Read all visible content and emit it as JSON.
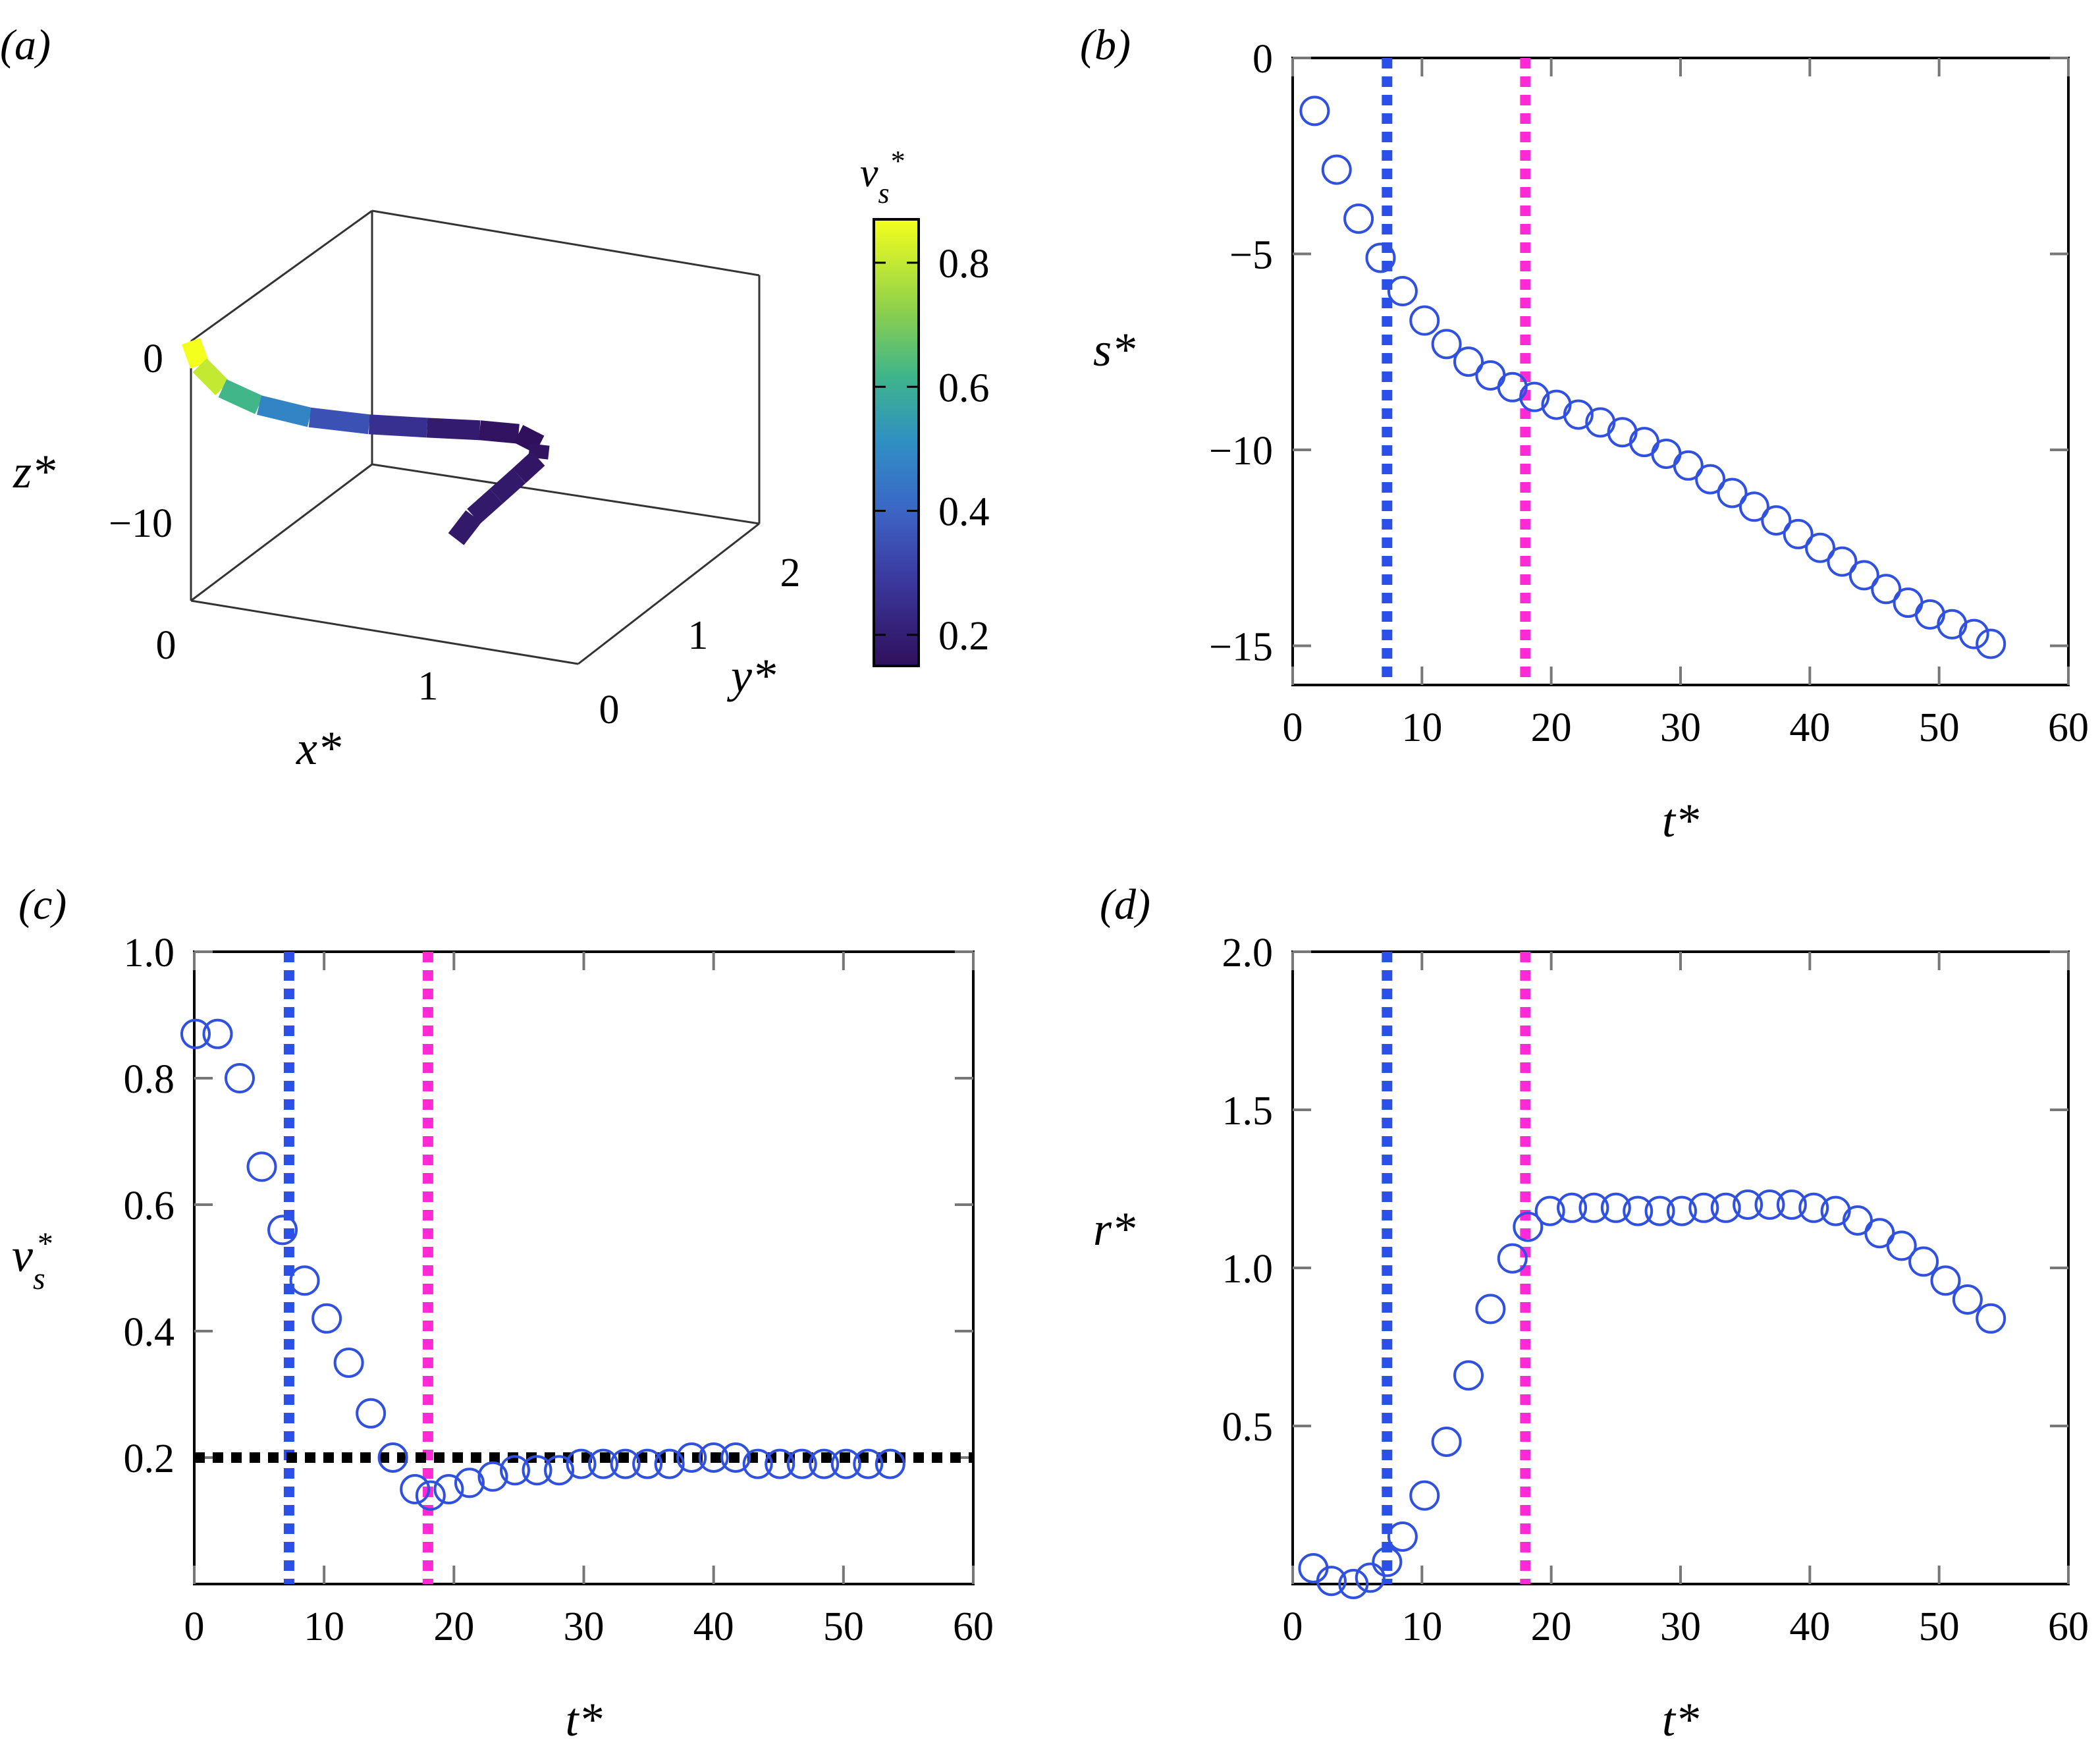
{
  "chart_data": [
    {
      "panel": "(a)",
      "type": "line3d",
      "xlabel": "x*",
      "ylabel": "y*",
      "zlabel": "z*",
      "x_ticks": [
        "0",
        "1"
      ],
      "y_ticks": [
        "0",
        "1",
        "2"
      ],
      "z_ticks": [
        "0",
        "−10"
      ],
      "xlim": [
        0,
        1.5
      ],
      "ylim": [
        0,
        2.5
      ],
      "zlim": [
        -15,
        0
      ],
      "trajectory": {
        "x": [
          0.0,
          0.02,
          0.08,
          0.18,
          0.32,
          0.48,
          0.62,
          0.74,
          0.82,
          0.86,
          0.84,
          0.78,
          0.72,
          0.66,
          0.62
        ],
        "y": [
          0.0,
          0.05,
          0.15,
          0.3,
          0.5,
          0.75,
          1.05,
          1.35,
          1.6,
          1.75,
          1.8,
          1.75,
          1.65,
          1.55,
          1.45
        ],
        "z": [
          0.0,
          -1.5,
          -3.0,
          -4.2,
          -5.2,
          -6.0,
          -6.8,
          -7.6,
          -8.4,
          -9.4,
          -10.4,
          -11.4,
          -12.4,
          -13.4,
          -14.5
        ],
        "vs": [
          0.87,
          0.8,
          0.62,
          0.48,
          0.35,
          0.26,
          0.19,
          0.16,
          0.15,
          0.16,
          0.17,
          0.18,
          0.18,
          0.18,
          0.18
        ]
      },
      "colorbar": {
        "label": "v*s",
        "ticks": [
          "0.2",
          "0.4",
          "0.6",
          "0.8"
        ],
        "range": [
          0.15,
          0.87
        ]
      }
    },
    {
      "panel": "(b)",
      "type": "scatter",
      "xlabel": "t*",
      "ylabel": "s*",
      "xlim": [
        0,
        60
      ],
      "ylim": [
        -16,
        0
      ],
      "x_ticks": [
        "0",
        "10",
        "20",
        "30",
        "40",
        "50",
        "60"
      ],
      "y_ticks": [
        "0",
        "−5",
        "−10",
        "−15"
      ],
      "vlines": [
        {
          "x": 7.3,
          "color": "#2b4fe8"
        },
        {
          "x": 18,
          "color": "#ff2ad4"
        }
      ],
      "x": [
        1.7,
        3.4,
        5.1,
        6.8,
        8.5,
        10.2,
        11.9,
        13.6,
        15.3,
        17.0,
        18.7,
        20.4,
        22.1,
        23.8,
        25.5,
        27.2,
        28.9,
        30.6,
        32.3,
        34.0,
        35.7,
        37.4,
        39.1,
        40.8,
        42.5,
        44.2,
        45.9,
        47.6,
        49.3,
        51.0,
        52.7,
        54.0
      ],
      "y": [
        -1.35,
        -2.85,
        -4.1,
        -5.1,
        -5.95,
        -6.7,
        -7.3,
        -7.75,
        -8.1,
        -8.4,
        -8.65,
        -8.85,
        -9.1,
        -9.3,
        -9.55,
        -9.8,
        -10.1,
        -10.4,
        -10.75,
        -11.1,
        -11.45,
        -11.8,
        -12.15,
        -12.5,
        -12.85,
        -13.2,
        -13.55,
        -13.9,
        -14.2,
        -14.45,
        -14.7,
        -14.95
      ]
    },
    {
      "panel": "(c)",
      "type": "scatter",
      "xlabel": "t*",
      "ylabel": "v*s",
      "xlim": [
        0,
        60
      ],
      "ylim": [
        0,
        1.0
      ],
      "x_ticks": [
        "0",
        "10",
        "20",
        "30",
        "40",
        "50",
        "60"
      ],
      "y_ticks": [
        "0.2",
        "0.4",
        "0.6",
        "0.8",
        "1.0"
      ],
      "vlines": [
        {
          "x": 7.3,
          "color": "#2b4fe8"
        },
        {
          "x": 18,
          "color": "#ff2ad4"
        }
      ],
      "hlines": [
        {
          "y": 0.2,
          "color": "#000000"
        }
      ],
      "x": [
        0.1,
        1.8,
        3.5,
        5.2,
        6.8,
        8.5,
        10.2,
        11.9,
        13.6,
        15.3,
        17.0,
        18.2,
        19.6,
        21.2,
        23.0,
        24.7,
        26.4,
        28.1,
        29.8,
        31.5,
        33.2,
        34.9,
        36.6,
        38.3,
        40.0,
        41.7,
        43.4,
        45.1,
        46.8,
        48.5,
        50.2,
        51.9,
        53.6
      ],
      "y": [
        0.87,
        0.87,
        0.8,
        0.66,
        0.56,
        0.48,
        0.42,
        0.35,
        0.27,
        0.2,
        0.15,
        0.14,
        0.15,
        0.16,
        0.17,
        0.18,
        0.18,
        0.18,
        0.19,
        0.19,
        0.19,
        0.19,
        0.19,
        0.2,
        0.2,
        0.2,
        0.19,
        0.19,
        0.19,
        0.19,
        0.19,
        0.19,
        0.19
      ]
    },
    {
      "panel": "(d)",
      "type": "scatter",
      "xlabel": "t*",
      "ylabel": "r*",
      "xlim": [
        0,
        60
      ],
      "ylim": [
        0,
        2.0
      ],
      "x_ticks": [
        "0",
        "10",
        "20",
        "30",
        "40",
        "50",
        "60"
      ],
      "y_ticks": [
        "0.5",
        "1.0",
        "1.5",
        "2.0"
      ],
      "vlines": [
        {
          "x": 7.3,
          "color": "#2b4fe8"
        },
        {
          "x": 18,
          "color": "#ff2ad4"
        }
      ],
      "x": [
        1.6,
        3.0,
        4.7,
        6.0,
        7.3,
        8.5,
        10.2,
        11.9,
        13.6,
        15.3,
        17.0,
        18.2,
        19.9,
        21.6,
        23.3,
        25.0,
        26.7,
        28.4,
        30.1,
        31.8,
        33.5,
        35.2,
        36.9,
        38.6,
        40.3,
        42.0,
        43.7,
        45.4,
        47.1,
        48.8,
        50.5,
        52.2,
        54.0
      ],
      "y": [
        0.05,
        0.01,
        0.0,
        0.02,
        0.07,
        0.15,
        0.28,
        0.45,
        0.66,
        0.87,
        1.03,
        1.13,
        1.18,
        1.19,
        1.19,
        1.19,
        1.18,
        1.18,
        1.18,
        1.19,
        1.19,
        1.2,
        1.2,
        1.2,
        1.19,
        1.18,
        1.15,
        1.11,
        1.07,
        1.02,
        0.96,
        0.9,
        0.84
      ]
    }
  ]
}
